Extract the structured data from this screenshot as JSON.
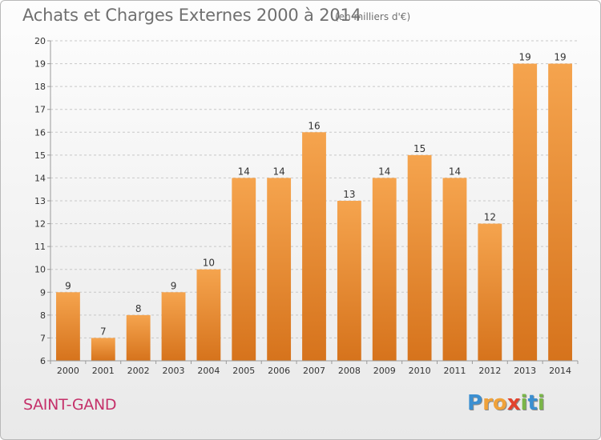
{
  "title": "Achats et Charges Externes 2000 à 2014",
  "subtitle": "(en milliers d'€)",
  "commune": "SAINT-GAND",
  "logo": {
    "text": "Proxiti",
    "letters": [
      {
        "ch": "P",
        "color": "#3b8fd1"
      },
      {
        "ch": "r",
        "color": "#f0a23a"
      },
      {
        "ch": "o",
        "color": "#f0a23a"
      },
      {
        "ch": "x",
        "color": "#e2432e"
      },
      {
        "ch": "i",
        "color": "#7ab648"
      },
      {
        "ch": "t",
        "color": "#3b8fd1"
      },
      {
        "ch": "i",
        "color": "#7ab648"
      }
    ]
  },
  "colors": {
    "bar_light": "#f5a44e",
    "bar_dark": "#d6731c",
    "axis": "#9a9a9a",
    "grid": "#c8c8c8",
    "text": "#333333"
  },
  "chart_data": {
    "type": "bar",
    "categories": [
      "2000",
      "2001",
      "2002",
      "2003",
      "2004",
      "2005",
      "2006",
      "2007",
      "2008",
      "2009",
      "2010",
      "2011",
      "2012",
      "2013",
      "2014"
    ],
    "values": [
      9,
      7,
      8,
      9,
      10,
      14,
      14,
      16,
      13,
      14,
      15,
      14,
      12,
      19,
      19
    ],
    "ylim": [
      6,
      20
    ],
    "yticks": [
      6,
      7,
      8,
      9,
      10,
      11,
      12,
      13,
      14,
      15,
      16,
      17,
      18,
      19,
      20
    ],
    "grid": "horizontal dashed",
    "data_labels": true
  }
}
